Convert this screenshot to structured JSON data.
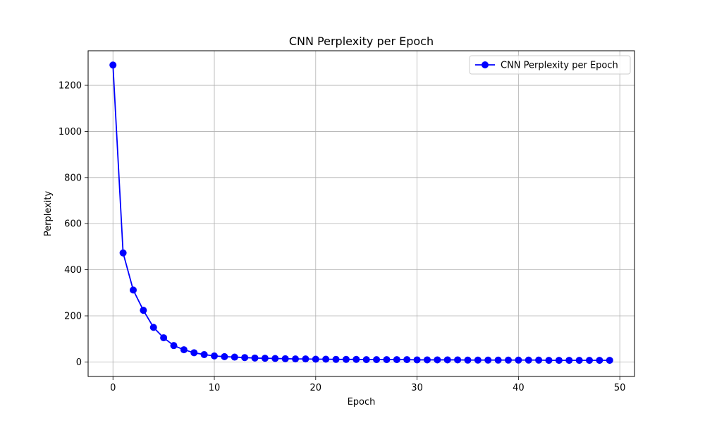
{
  "chart_data": {
    "type": "line",
    "title": "CNN Perplexity per Epoch",
    "xlabel": "Epoch",
    "ylabel": "Perplexity",
    "xlim": [
      -2.45,
      51.45
    ],
    "ylim": [
      -63,
      1350
    ],
    "xticks": [
      0,
      10,
      20,
      30,
      40,
      50
    ],
    "yticks": [
      0,
      200,
      400,
      600,
      800,
      1000,
      1200
    ],
    "grid": true,
    "legend_position": "top-right",
    "series": [
      {
        "name": "CNN Perplexity per Epoch",
        "color": "#0000ff",
        "marker": "circle",
        "x": [
          0,
          1,
          2,
          3,
          4,
          5,
          6,
          7,
          8,
          9,
          10,
          11,
          12,
          13,
          14,
          15,
          16,
          17,
          18,
          19,
          20,
          21,
          22,
          23,
          24,
          25,
          26,
          27,
          28,
          29,
          30,
          31,
          32,
          33,
          34,
          35,
          36,
          37,
          38,
          39,
          40,
          41,
          42,
          43,
          44,
          45,
          46,
          47,
          48,
          49
        ],
        "y": [
          1288,
          473,
          312,
          224,
          150,
          105,
          71,
          53,
          40,
          32,
          26,
          23,
          21,
          19,
          17,
          16,
          15,
          14,
          13,
          13,
          12,
          12,
          11,
          11,
          11,
          10,
          10,
          10,
          10,
          10,
          9,
          9,
          9,
          9,
          9,
          8,
          8,
          8,
          8,
          8,
          8,
          8,
          8,
          7,
          7,
          7,
          7,
          7,
          7,
          7
        ]
      }
    ]
  }
}
